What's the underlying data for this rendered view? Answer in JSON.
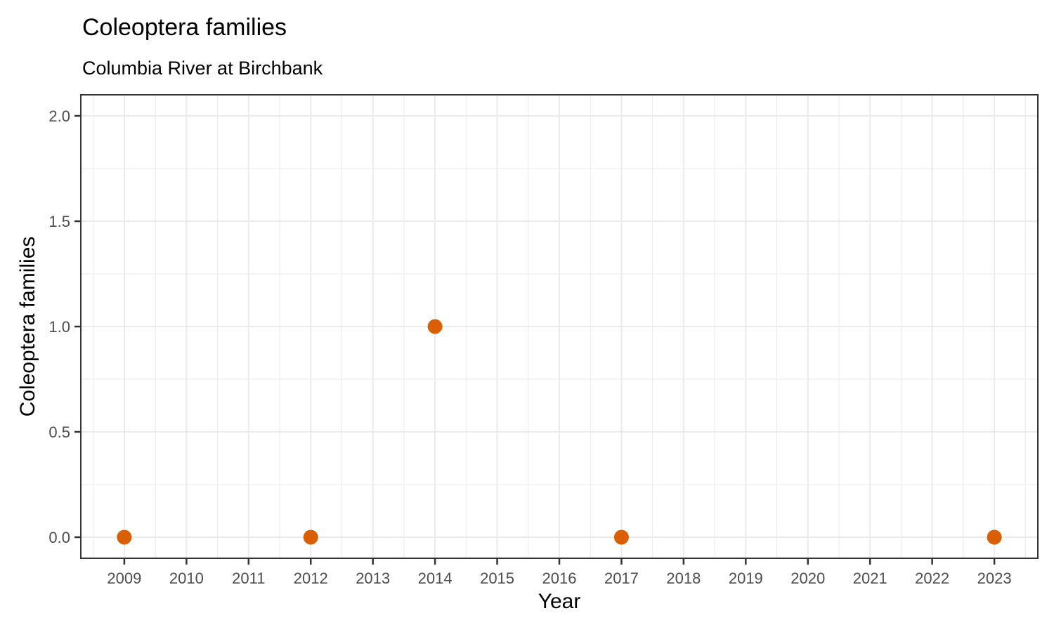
{
  "chart_data": {
    "type": "scatter",
    "title": "Coleoptera families",
    "subtitle": "Columbia River at Birchbank",
    "xlabel": "Year",
    "ylabel": "Coleoptera families",
    "x": [
      2009,
      2012,
      2014,
      2017,
      2023
    ],
    "y": [
      0,
      0,
      1,
      0,
      0
    ],
    "xlim": [
      2008.3,
      2023.7
    ],
    "ylim": [
      -0.1,
      2.1
    ],
    "x_ticks": [
      2009,
      2010,
      2011,
      2012,
      2013,
      2014,
      2015,
      2016,
      2017,
      2018,
      2019,
      2020,
      2021,
      2022,
      2023
    ],
    "x_tick_labels": [
      "2009",
      "2010",
      "2011",
      "2012",
      "2013",
      "2014",
      "2015",
      "2016",
      "2017",
      "2018",
      "2019",
      "2020",
      "2021",
      "2022",
      "2023"
    ],
    "y_ticks": [
      0,
      0.5,
      1,
      1.5,
      2
    ],
    "y_tick_labels": [
      "0.0",
      "0.5",
      "1.0",
      "1.5",
      "2.0"
    ],
    "grid": "major+minor",
    "legend": "none",
    "point_radius": 10.5,
    "colors": {
      "point": "#D95F02",
      "grid": "#EBEBEB",
      "panel_border": "#333333",
      "tick": "#333333",
      "tick_label": "#4D4D4D",
      "text": "#000000"
    }
  }
}
